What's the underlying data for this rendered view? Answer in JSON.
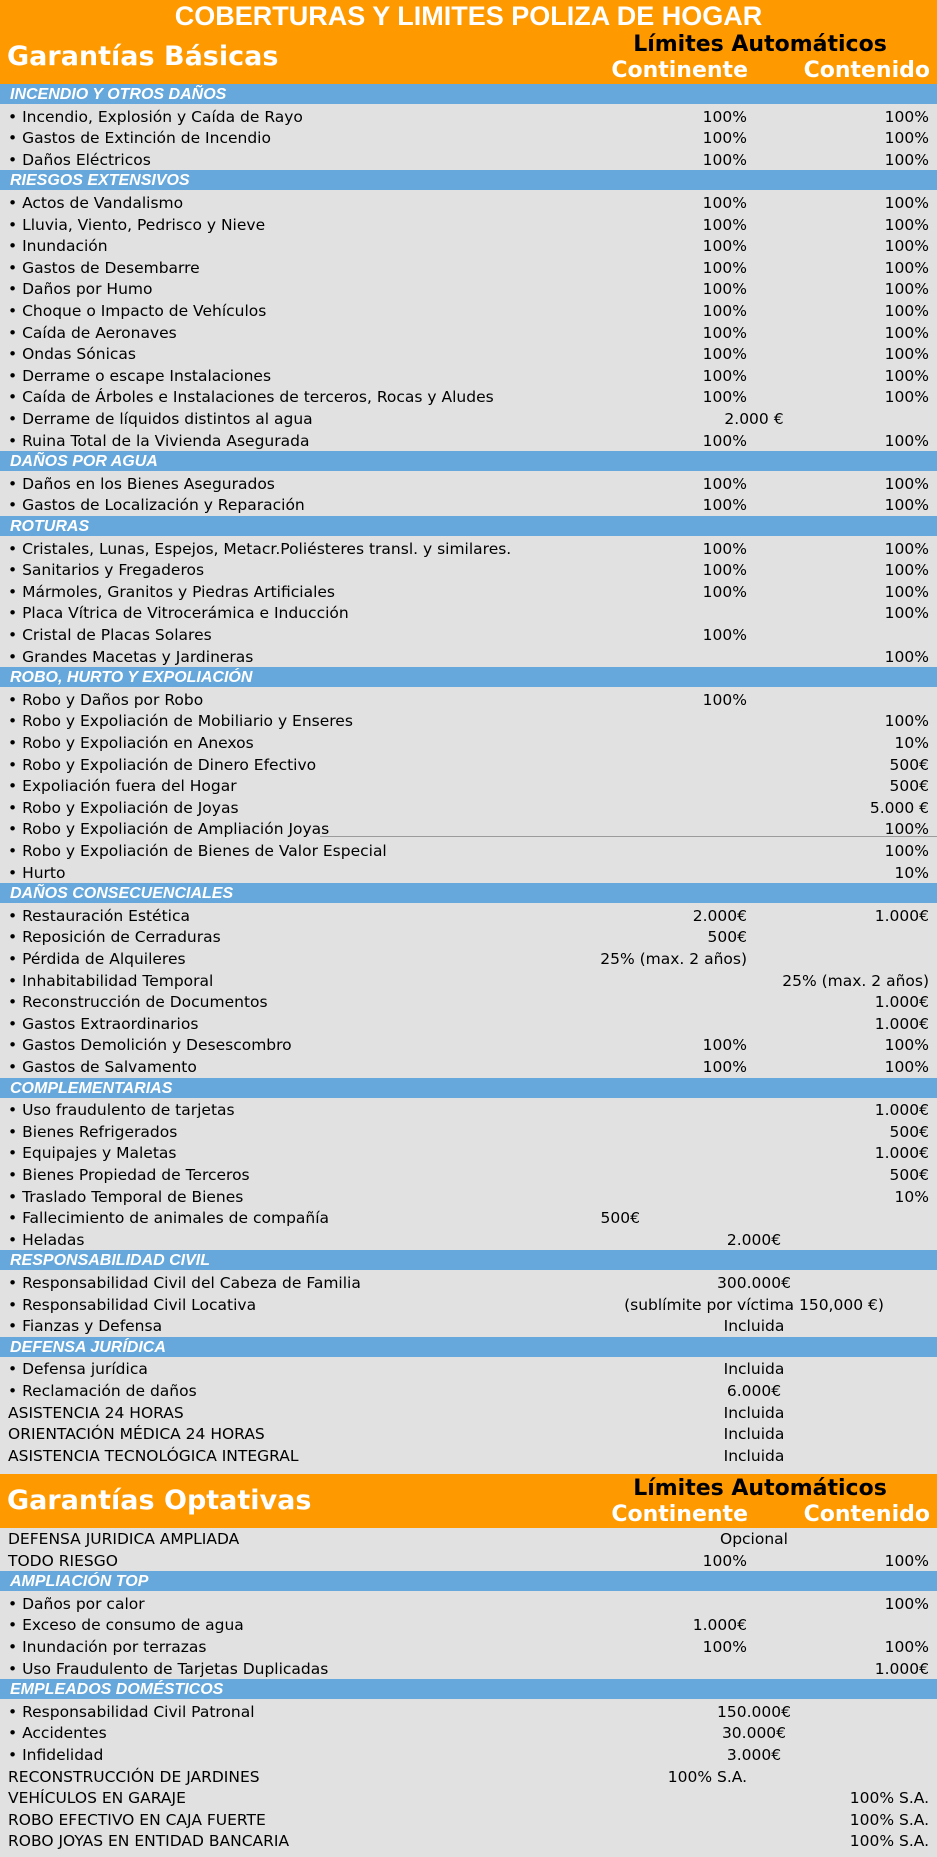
{
  "title": "COBERTURAS Y LIMITES POLIZA DE HOGAR",
  "basic_header": {
    "title": "Garantías Básicas",
    "limits": "Límites Automáticos",
    "col1": "Continente",
    "col2": "Contenido"
  },
  "basic_sections": [
    {
      "name": "INCENDIO Y OTROS DAÑOS",
      "rows": [
        {
          "label": "• Incendio, Explosión y Caída de Rayo",
          "c1": "100%",
          "c2": "100%"
        },
        {
          "label": "• Gastos de Extinción de Incendio",
          "c1": "100%",
          "c2": "100%"
        },
        {
          "label": "• Daños Eléctricos",
          "c1": "100%",
          "c2": "100%"
        }
      ]
    },
    {
      "name": "RIESGOS EXTENSIVOS",
      "rows": [
        {
          "label": "• Actos de Vandalismo",
          "c1": "100%",
          "c2": "100%"
        },
        {
          "label": "• Lluvia, Viento, Pedrisco y Nieve",
          "c1": "100%",
          "c2": "100%"
        },
        {
          "label": "• Inundación",
          "c1": "100%",
          "c2": "100%"
        },
        {
          "label": "• Gastos de Desembarre",
          "c1": "100%",
          "c2": "100%"
        },
        {
          "label": "• Daños por Humo",
          "c1": "100%",
          "c2": "100%"
        },
        {
          "label": "• Choque o Impacto de Vehículos",
          "c1": "100%",
          "c2": "100%"
        },
        {
          "label": "• Caída de Aeronaves",
          "c1": "100%",
          "c2": "100%"
        },
        {
          "label": "• Ondas Sónicas",
          "c1": "100%",
          "c2": "100%"
        },
        {
          "label": "• Derrame o escape Instalaciones",
          "c1": "100%",
          "c2": "100%"
        },
        {
          "label": "• Caída de Árboles e Instalaciones de terceros, Rocas y Aludes",
          "c1": "100%",
          "c2": "100%"
        },
        {
          "label": "• Derrame de líquidos distintos al agua",
          "mid": "2.000 €"
        },
        {
          "label": "• Ruina Total de la Vivienda Asegurada",
          "c1": "100%",
          "c2": "100%"
        }
      ]
    },
    {
      "name": "DAÑOS POR AGUA",
      "rows": [
        {
          "label": "• Daños en los Bienes Asegurados",
          "c1": "100%",
          "c2": "100%"
        },
        {
          "label": "• Gastos de Localización y Reparación",
          "c1": "100%",
          "c2": "100%"
        }
      ]
    },
    {
      "name": "ROTURAS",
      "rows": [
        {
          "label": "•  Cristales, Lunas, Espejos, Metacr.Poliésteres transl. y similares.",
          "c1": "100%",
          "c2": "100%"
        },
        {
          "label": "• Sanitarios y Fregaderos",
          "c1": "100%",
          "c2": "100%"
        },
        {
          "label": "• Mármoles, Granitos y Piedras Artificiales",
          "c1": "100%",
          "c2": "100%"
        },
        {
          "label": "• Placa Vítrica de Vitrocerámica e Inducción",
          "c1": "",
          "c2": "100%"
        },
        {
          "label": "• Cristal de Placas Solares",
          "c1": "100%",
          "c2": ""
        },
        {
          "label": "• Grandes Macetas y Jardineras",
          "c1": "",
          "c2": "100%"
        }
      ]
    },
    {
      "name": "ROBO, HURTO Y EXPOLIACIÓN",
      "rows": [
        {
          "label": "• Robo y Daños por Robo",
          "c1": "100%",
          "c2": ""
        },
        {
          "label": "• Robo y Expoliación de Mobiliario y Enseres",
          "c1": "",
          "c2": "100%"
        },
        {
          "label": "• Robo y Expoliación en Anexos",
          "c1": "",
          "c2": "10%"
        },
        {
          "label": "• Robo y Expoliación de Dinero Efectivo",
          "c1": "",
          "c2": "500€"
        },
        {
          "label": "• Expoliación fuera del Hogar",
          "c1": "",
          "c2": "500€"
        },
        {
          "label": "• Robo y Expoliación de Joyas",
          "c1": "",
          "c2": "5.000 €"
        },
        {
          "label": "• Robo y Expoliación de Ampliación Joyas",
          "c1": "",
          "c2": "100%"
        },
        {
          "label": "• Robo y Expoliación de Bienes de Valor Especial",
          "c1": "",
          "c2": "100%"
        },
        {
          "label": "• Hurto",
          "c1": "",
          "c2": "10%"
        }
      ]
    },
    {
      "name": "DAÑOS CONSECUENCIALES",
      "rows": [
        {
          "label": "• Restauración Estética",
          "c1": "2.000€",
          "c2": "1.000€"
        },
        {
          "label": "• Reposición de Cerraduras",
          "c1": "500€",
          "c2": ""
        },
        {
          "label": "• Pérdida de Alquileres",
          "c1": "25% (max. 2 años)",
          "c2": ""
        },
        {
          "label": "• Inhabitabilidad Temporal",
          "c1": "",
          "c2": "25% (max. 2 años)"
        },
        {
          "label": "• Reconstrucción de Documentos",
          "c1": "",
          "c2": "1.000€"
        },
        {
          "label": "• Gastos Extraordinarios",
          "c1": "",
          "c2": "1.000€"
        },
        {
          "label": "• Gastos Demolición y Desescombro",
          "c1": "100%",
          "c2": "100%"
        },
        {
          "label": "• Gastos de Salvamento",
          "c1": "100%",
          "c2": "100%"
        }
      ]
    },
    {
      "name": "COMPLEMENTARIAS",
      "rows": [
        {
          "label": "• Uso fraudulento de tarjetas",
          "c1": "",
          "c2": "1.000€"
        },
        {
          "label": "• Bienes Refrigerados",
          "c1": "",
          "c2": "500€"
        },
        {
          "label": "• Equipajes y Maletas",
          "c1": "",
          "c2": "1.000€"
        },
        {
          "label": "• Bienes Propiedad de Terceros",
          "c1": "",
          "c2": "500€"
        },
        {
          "label": "• Traslado Temporal de Bienes",
          "c1": "",
          "c2": "10%"
        },
        {
          "label": "• Fallecimiento de animales de compañía",
          "mid2": "500€"
        },
        {
          "label": "• Heladas",
          "mid": "2.000€"
        }
      ]
    },
    {
      "name": "RESPONSABILIDAD CIVIL",
      "rows": [
        {
          "label": "• Responsabilidad Civil del Cabeza de Familia",
          "mid": "300.000€"
        },
        {
          "label": "• Responsabilidad Civil Locativa",
          "mid": "(sublímite por víctima 150,000 €)"
        },
        {
          "label": "• Fianzas y Defensa",
          "mid": "Incluida"
        }
      ]
    },
    {
      "name": "DEFENSA JURÍDICA",
      "rows": [
        {
          "label": "• Defensa jurídica",
          "mid": "Incluida"
        },
        {
          "label": "• Reclamación de daños",
          "mid": "6.000€"
        },
        {
          "label": "ASISTENCIA 24 HORAS",
          "mid": "Incluida"
        },
        {
          "label": "ORIENTACIÓN MÉDICA 24 HORAS",
          "mid": "Incluida"
        },
        {
          "label": "ASISTENCIA TECNOLÓGICA INTEGRAL",
          "mid": "Incluida"
        }
      ]
    }
  ],
  "optional_header": {
    "title": "Garantías Optativas",
    "limits": "Límites Automáticos",
    "col1": "Continente",
    "col2": "Contenido"
  },
  "optional_pre_rows": [
    {
      "label": "DEFENSA JURIDICA AMPLIADA",
      "mid": "Opcional"
    },
    {
      "label": "TODO RIESGO",
      "c1": "100%",
      "c2": "100%"
    }
  ],
  "optional_sections": [
    {
      "name": "AMPLIACIÓN TOP",
      "rows": [
        {
          "label": "• Daños por calor",
          "c1": "",
          "c2": "100%"
        },
        {
          "label": "• Exceso de consumo de agua",
          "c1": "1.000€",
          "c2": ""
        },
        {
          "label": "• Inundación por terrazas",
          "c1": "100%",
          "c2": "100%"
        },
        {
          "label": "• Uso Fraudulento de Tarjetas Duplicadas",
          "c1": "",
          "c2": "1.000€"
        }
      ]
    },
    {
      "name": "EMPLEADOS DOMÉSTICOS",
      "rows": [
        {
          "label": "• Responsabilidad Civil Patronal",
          "mid": "150.000€"
        },
        {
          "label": "• Accidentes",
          "mid": "30.000€"
        },
        {
          "label": "• Infidelidad",
          "mid": "3.000€"
        },
        {
          "label": "RECONSTRUCCIÓN DE JARDINES",
          "c1": "100% S.A.",
          "c2": ""
        },
        {
          "label": "VEHÍCULOS EN GARAJE",
          "c1": "",
          "c2": "100% S.A."
        },
        {
          "label": "ROBO EFECTIVO EN CAJA FUERTE",
          "c1": "",
          "c2": "100% S.A."
        },
        {
          "label": "ROBO JOYAS EN ENTIDAD BANCARIA",
          "c1": "",
          "c2": "100% S.A."
        }
      ]
    }
  ]
}
